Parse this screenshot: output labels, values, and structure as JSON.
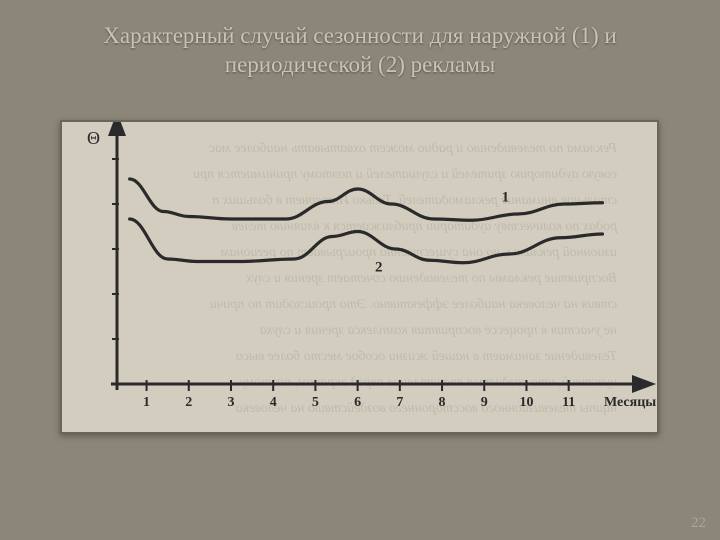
{
  "title_line1": "Характерный случай сезонности для наружной (1) и",
  "title_line2": "периодической (2) рекламы",
  "title_fontsize": 23,
  "title_color": "#c8c4b8",
  "background_color": "#8b8678",
  "chart": {
    "type": "line",
    "y_axis_symbol": "Θ",
    "x_axis_label": "Месяцы года",
    "x_ticks": [
      "1",
      "2",
      "3",
      "4",
      "5",
      "6",
      "7",
      "8",
      "9",
      "10",
      "11"
    ],
    "xlim": [
      0.3,
      12.5
    ],
    "ylim": [
      0,
      10
    ],
    "plot_bg": "#d2cdbf",
    "axis_color": "#2a2a2a",
    "axis_width": 3,
    "line_color": "#2a2a2a",
    "line_width": 3.2,
    "tick_font_size": 14,
    "label_font_size": 14,
    "series": {
      "s1": {
        "label": "1",
        "label_pos": {
          "x": 9.5,
          "y": 7.3
        },
        "points": [
          {
            "x": 0.6,
            "y": 8.2
          },
          {
            "x": 1.4,
            "y": 6.9
          },
          {
            "x": 2.0,
            "y": 6.7
          },
          {
            "x": 3.0,
            "y": 6.6
          },
          {
            "x": 4.3,
            "y": 6.6
          },
          {
            "x": 5.3,
            "y": 7.3
          },
          {
            "x": 6.0,
            "y": 7.8
          },
          {
            "x": 6.8,
            "y": 7.2
          },
          {
            "x": 7.8,
            "y": 6.6
          },
          {
            "x": 8.7,
            "y": 6.55
          },
          {
            "x": 9.8,
            "y": 6.8
          },
          {
            "x": 10.9,
            "y": 7.2
          },
          {
            "x": 11.8,
            "y": 7.25
          }
        ]
      },
      "s2": {
        "label": "2",
        "label_pos": {
          "x": 6.5,
          "y": 4.5
        },
        "points": [
          {
            "x": 0.6,
            "y": 6.6
          },
          {
            "x": 1.5,
            "y": 5.0
          },
          {
            "x": 2.2,
            "y": 4.9
          },
          {
            "x": 3.2,
            "y": 4.9
          },
          {
            "x": 4.5,
            "y": 5.0
          },
          {
            "x": 5.4,
            "y": 5.9
          },
          {
            "x": 6.0,
            "y": 6.1
          },
          {
            "x": 6.9,
            "y": 5.4
          },
          {
            "x": 7.7,
            "y": 4.95
          },
          {
            "x": 8.5,
            "y": 4.85
          },
          {
            "x": 9.6,
            "y": 5.2
          },
          {
            "x": 10.8,
            "y": 5.85
          },
          {
            "x": 11.8,
            "y": 6.0
          }
        ]
      }
    },
    "ghost_text_lines": [
      "Реклама по телевидению и радио может охватывать наиболее мас",
      "совую аудиторию зрителей и слушателей и поэтому принимается при",
      "стальное внимание рекламодателей. Только Интернет в больших п",
      "родах по количеству аудитории приближается к влиянию телев",
      "изионной рекламы, но она существенно проигрывает по регионам",
      "Восприятие рекламы по телевидению сочетает зрения и слух",
      "ствия на человека наиболее эффективно. Это происходит по причи",
      "не участия в процессе восприятия комплекса зрения и слуха",
      "Телевидение занимает в нашей жизни особое место более высо",
      "чувствий, что создается впечатление перед экраном, поэтому",
      "нципы телевизионного восстороннего воздействию на человека"
    ]
  },
  "page_number": "22"
}
